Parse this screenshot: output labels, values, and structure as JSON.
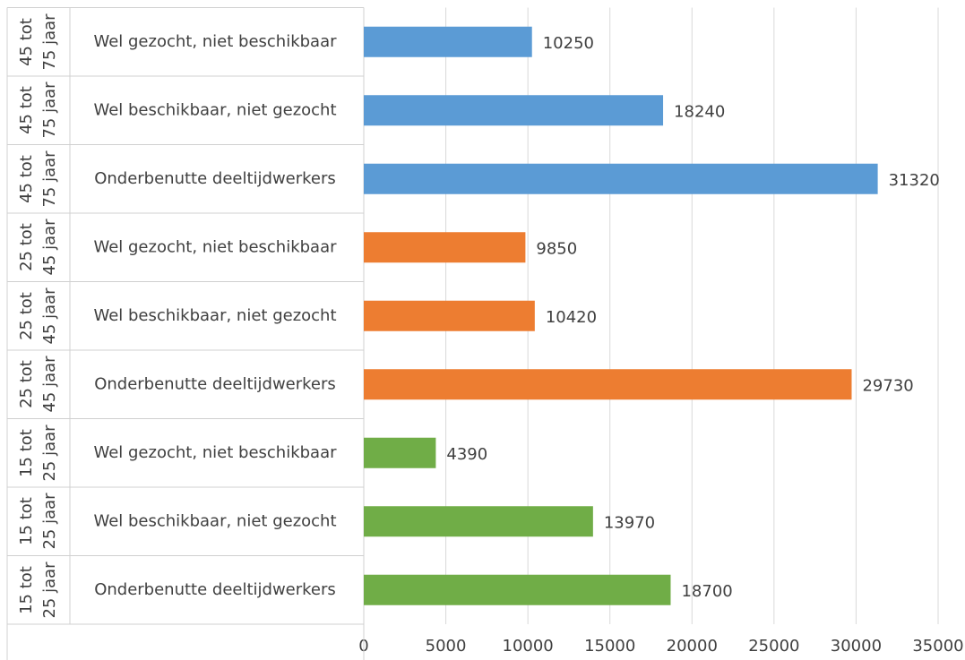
{
  "chart_data": {
    "type": "bar",
    "orientation": "horizontal",
    "groups": [
      "45 tot 75 jaar",
      "45 tot 75 jaar",
      "45 tot 75 jaar",
      "25 tot 45 jaar",
      "25 tot 45 jaar",
      "25 tot 45 jaar",
      "15 tot 25 jaar",
      "15 tot 25 jaar",
      "15 tot 25 jaar"
    ],
    "categories": [
      "Wel gezocht, niet beschikbaar",
      "Wel beschikbaar, niet gezocht",
      "Onderbenutte deeltijdwerkers",
      "Wel gezocht, niet beschikbaar",
      "Wel beschikbaar, niet gezocht",
      "Onderbenutte deeltijdwerkers",
      "Wel gezocht, niet beschikbaar",
      "Wel beschikbaar, niet gezocht",
      "Onderbenutte deeltijdwerkers"
    ],
    "values": [
      10250,
      18240,
      31320,
      9850,
      10420,
      29730,
      4390,
      13970,
      18700
    ],
    "colors": [
      "#5b9bd5",
      "#5b9bd5",
      "#5b9bd5",
      "#ed7d31",
      "#ed7d31",
      "#ed7d31",
      "#70ad47",
      "#70ad47",
      "#70ad47"
    ],
    "xlim": [
      0,
      35000
    ],
    "xticks": [
      0,
      5000,
      10000,
      15000,
      20000,
      25000,
      30000,
      35000
    ],
    "grid": true
  }
}
